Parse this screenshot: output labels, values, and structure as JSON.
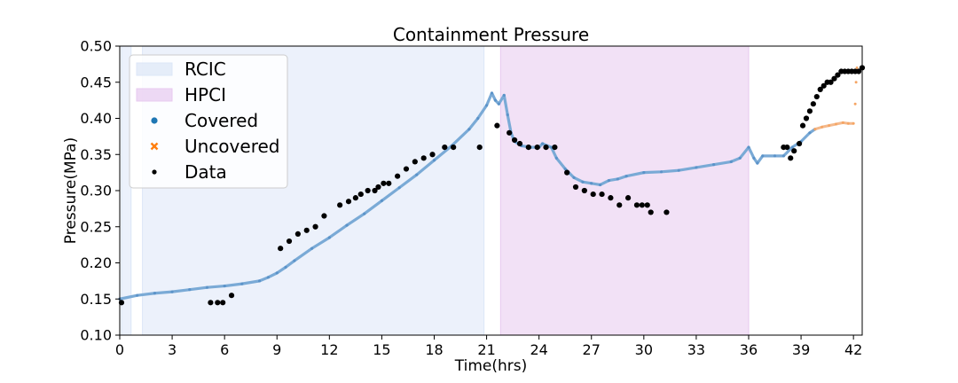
{
  "chart_data": {
    "type": "scatter",
    "title": "Containment Pressure",
    "xlabel": "Time(hrs)",
    "ylabel": "Pressure(MPa)",
    "xlim": [
      0,
      42.5
    ],
    "ylim": [
      0.1,
      0.5
    ],
    "xticks": [
      "0",
      "3",
      "6",
      "9",
      "12",
      "15",
      "18",
      "21",
      "24",
      "27",
      "30",
      "33",
      "36",
      "39",
      "42"
    ],
    "yticks": [
      "0.10",
      "0.15",
      "0.20",
      "0.25",
      "0.30",
      "0.35",
      "0.40",
      "0.45",
      "0.50"
    ],
    "grid": false,
    "legend_position": "top-left",
    "spans": [
      {
        "name": "RCIC",
        "color": "#dce6f7",
        "ranges": [
          [
            0.1,
            0.65
          ],
          [
            1.3,
            20.85
          ]
        ]
      },
      {
        "name": "HPCI",
        "color": "#e7c9ef",
        "ranges": [
          [
            21.8,
            36.0
          ]
        ]
      }
    ],
    "series": [
      {
        "name": "Covered",
        "color": "#1f77b4",
        "marker": "circle",
        "points": [
          [
            0.0,
            0.15
          ],
          [
            1.0,
            0.155
          ],
          [
            2.0,
            0.158
          ],
          [
            3.0,
            0.16
          ],
          [
            4.0,
            0.163
          ],
          [
            5.0,
            0.166
          ],
          [
            6.0,
            0.168
          ],
          [
            7.0,
            0.171
          ],
          [
            8.0,
            0.175
          ],
          [
            8.5,
            0.18
          ],
          [
            9.0,
            0.186
          ],
          [
            9.5,
            0.194
          ],
          [
            10.0,
            0.203
          ],
          [
            11.0,
            0.22
          ],
          [
            12.0,
            0.235
          ],
          [
            13.0,
            0.252
          ],
          [
            14.0,
            0.268
          ],
          [
            15.0,
            0.286
          ],
          [
            16.0,
            0.304
          ],
          [
            17.0,
            0.322
          ],
          [
            18.0,
            0.342
          ],
          [
            19.0,
            0.362
          ],
          [
            20.0,
            0.385
          ],
          [
            20.5,
            0.4
          ],
          [
            21.0,
            0.418
          ],
          [
            21.3,
            0.435
          ],
          [
            21.5,
            0.425
          ],
          [
            21.7,
            0.42
          ],
          [
            22.0,
            0.432
          ],
          [
            22.2,
            0.405
          ],
          [
            22.4,
            0.38
          ],
          [
            22.6,
            0.368
          ],
          [
            23.0,
            0.362
          ],
          [
            23.5,
            0.36
          ],
          [
            24.0,
            0.36
          ],
          [
            24.2,
            0.365
          ],
          [
            24.7,
            0.36
          ],
          [
            25.0,
            0.345
          ],
          [
            25.5,
            0.33
          ],
          [
            26.0,
            0.318
          ],
          [
            26.5,
            0.312
          ],
          [
            27.0,
            0.31
          ],
          [
            27.5,
            0.308
          ],
          [
            28.0,
            0.314
          ],
          [
            28.5,
            0.316
          ],
          [
            29.0,
            0.32
          ],
          [
            30.0,
            0.325
          ],
          [
            31.0,
            0.326
          ],
          [
            32.0,
            0.328
          ],
          [
            33.0,
            0.332
          ],
          [
            34.0,
            0.336
          ],
          [
            35.0,
            0.34
          ],
          [
            35.5,
            0.345
          ],
          [
            36.0,
            0.36
          ],
          [
            36.3,
            0.345
          ],
          [
            36.5,
            0.338
          ],
          [
            36.8,
            0.348
          ],
          [
            37.5,
            0.348
          ],
          [
            38.0,
            0.348
          ],
          [
            38.5,
            0.36
          ],
          [
            39.0,
            0.368
          ],
          [
            39.5,
            0.38
          ],
          [
            39.8,
            0.385
          ]
        ]
      },
      {
        "name": "Uncovered",
        "color": "#ff7f0e",
        "marker": "x",
        "points": [
          [
            39.8,
            0.385
          ],
          [
            40.2,
            0.388
          ],
          [
            40.6,
            0.39
          ],
          [
            41.0,
            0.392
          ],
          [
            41.4,
            0.394
          ],
          [
            41.7,
            0.393
          ],
          [
            42.0,
            0.393
          ],
          [
            42.1,
            0.42
          ],
          [
            42.15,
            0.45
          ],
          [
            42.2,
            0.47
          ]
        ]
      },
      {
        "name": "Data",
        "color": "#000000",
        "marker": "dot",
        "points": [
          [
            0.1,
            0.145
          ],
          [
            5.2,
            0.145
          ],
          [
            5.6,
            0.145
          ],
          [
            5.9,
            0.145
          ],
          [
            6.4,
            0.155
          ],
          [
            9.2,
            0.22
          ],
          [
            9.7,
            0.23
          ],
          [
            10.2,
            0.24
          ],
          [
            10.7,
            0.245
          ],
          [
            11.2,
            0.25
          ],
          [
            11.7,
            0.265
          ],
          [
            12.6,
            0.28
          ],
          [
            13.1,
            0.285
          ],
          [
            13.5,
            0.29
          ],
          [
            13.8,
            0.295
          ],
          [
            14.2,
            0.3
          ],
          [
            14.6,
            0.3
          ],
          [
            14.8,
            0.305
          ],
          [
            15.1,
            0.31
          ],
          [
            15.4,
            0.31
          ],
          [
            15.9,
            0.32
          ],
          [
            16.4,
            0.33
          ],
          [
            16.9,
            0.34
          ],
          [
            17.4,
            0.345
          ],
          [
            17.9,
            0.35
          ],
          [
            18.6,
            0.36
          ],
          [
            19.1,
            0.36
          ],
          [
            20.6,
            0.36
          ],
          [
            21.6,
            0.39
          ],
          [
            22.3,
            0.38
          ],
          [
            22.6,
            0.37
          ],
          [
            22.9,
            0.365
          ],
          [
            23.4,
            0.36
          ],
          [
            23.9,
            0.36
          ],
          [
            24.4,
            0.36
          ],
          [
            24.9,
            0.36
          ],
          [
            25.6,
            0.325
          ],
          [
            26.1,
            0.305
          ],
          [
            26.6,
            0.3
          ],
          [
            27.1,
            0.295
          ],
          [
            27.6,
            0.295
          ],
          [
            28.1,
            0.29
          ],
          [
            28.6,
            0.28
          ],
          [
            29.1,
            0.29
          ],
          [
            29.6,
            0.28
          ],
          [
            29.9,
            0.28
          ],
          [
            30.2,
            0.28
          ],
          [
            30.4,
            0.27
          ],
          [
            31.3,
            0.27
          ],
          [
            38.0,
            0.36
          ],
          [
            38.2,
            0.36
          ],
          [
            38.4,
            0.345
          ],
          [
            38.6,
            0.355
          ],
          [
            38.9,
            0.365
          ],
          [
            39.1,
            0.39
          ],
          [
            39.3,
            0.4
          ],
          [
            39.5,
            0.41
          ],
          [
            39.7,
            0.42
          ],
          [
            39.9,
            0.43
          ],
          [
            40.1,
            0.44
          ],
          [
            40.3,
            0.445
          ],
          [
            40.5,
            0.45
          ],
          [
            40.7,
            0.45
          ],
          [
            40.9,
            0.455
          ],
          [
            41.1,
            0.46
          ],
          [
            41.3,
            0.465
          ],
          [
            41.5,
            0.465
          ],
          [
            41.7,
            0.465
          ],
          [
            41.9,
            0.465
          ],
          [
            42.1,
            0.465
          ],
          [
            42.3,
            0.465
          ],
          [
            42.5,
            0.47
          ]
        ]
      }
    ]
  }
}
